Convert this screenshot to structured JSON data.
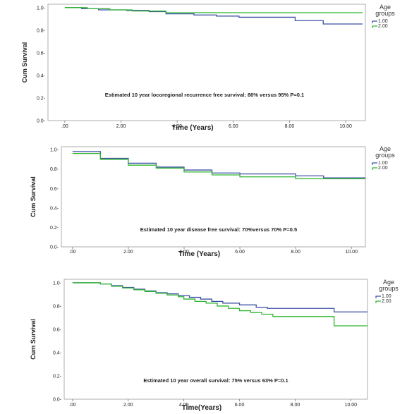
{
  "colors": {
    "group1": "#3b4fa3",
    "group2": "#2fb62f",
    "axis": "#555555"
  },
  "chart_data": [
    {
      "type": "line",
      "step": true,
      "ylabel": "Cum Survival",
      "xlabel": "Time (Years)",
      "xlim": [
        -0.6,
        10.7
      ],
      "ylim": [
        0,
        1.03
      ],
      "xticks": [
        0,
        2,
        4,
        6,
        8,
        10
      ],
      "xtick_labels": [
        ".00",
        "2.00",
        "4.00",
        "6.00",
        "8.00",
        "10.00"
      ],
      "yticks": [
        0,
        0.2,
        0.4,
        0.6,
        0.8,
        1.0
      ],
      "ytick_labels": [
        "0.0-",
        "0.2-",
        "0.4-",
        "0.6-",
        "0.8-",
        "1.0-"
      ],
      "annotation": "Estimated 10 year locoregional recurrence free survival: 86% versus 95% P=0.1",
      "legend": {
        "title_lines": [
          "Age",
          "groups"
        ],
        "position": "right"
      },
      "series": [
        {
          "name": "1.00",
          "color": "#3b4fa3",
          "x": [
            0,
            0.6,
            1.2,
            2.2,
            3.0,
            3.6,
            4.6,
            5.4,
            6.2,
            8.2,
            9.2,
            10.6
          ],
          "y": [
            1.0,
            0.99,
            0.98,
            0.975,
            0.965,
            0.945,
            0.935,
            0.925,
            0.915,
            0.885,
            0.855,
            0.855
          ]
        },
        {
          "name": "2.00",
          "color": "#2fb62f",
          "x": [
            0,
            0.8,
            1.6,
            2.4,
            3.6,
            10.6
          ],
          "y": [
            1.0,
            0.99,
            0.98,
            0.97,
            0.955,
            0.955
          ]
        }
      ]
    },
    {
      "type": "line",
      "step": true,
      "ylabel": "Cum Survival",
      "xlabel": "Time (Years)",
      "xlim": [
        -0.4,
        10.5
      ],
      "ylim": [
        0,
        1.03
      ],
      "xticks": [
        0,
        2,
        4,
        6,
        8,
        10
      ],
      "xtick_labels": [
        ".00",
        "2.00",
        "4.00",
        "6.00",
        "8.00",
        "10.00"
      ],
      "yticks": [
        0,
        0.2,
        0.4,
        0.6,
        0.8,
        1.0
      ],
      "ytick_labels": [
        "0.0-",
        "0.2-",
        "0.4-",
        "0.6-",
        "0.8-",
        "1.0-"
      ],
      "annotation": "Estimated 10 year disease free survival: 70%versus 70% P=0.5",
      "legend": {
        "title_lines": [
          "Age",
          "groups"
        ],
        "position": "right"
      },
      "series": [
        {
          "name": "1.00",
          "color": "#3b4fa3",
          "x": [
            0,
            1,
            2,
            3,
            4,
            5,
            6,
            8,
            9,
            10.5
          ],
          "y": [
            0.98,
            0.91,
            0.86,
            0.82,
            0.79,
            0.76,
            0.75,
            0.73,
            0.71,
            0.71
          ]
        },
        {
          "name": "2.00",
          "color": "#2fb62f",
          "x": [
            0,
            1,
            2,
            3,
            4,
            5,
            6,
            8,
            9,
            10.5
          ],
          "y": [
            0.96,
            0.9,
            0.84,
            0.81,
            0.77,
            0.74,
            0.72,
            0.7,
            0.7,
            0.7
          ]
        }
      ]
    },
    {
      "type": "line",
      "step": true,
      "ylabel": "Cum Survival",
      "xlabel": "Time(Years)",
      "xlim": [
        -0.3,
        10.6
      ],
      "ylim": [
        0,
        1.03
      ],
      "xticks": [
        0,
        2,
        4,
        6,
        8,
        10
      ],
      "xtick_labels": [
        ".00",
        "2.00",
        "4.00",
        "6.00",
        "8.00",
        "10.00"
      ],
      "yticks": [
        0,
        0.2,
        0.4,
        0.6,
        0.8,
        1.0
      ],
      "ytick_labels": [
        "0.0-",
        "0.2-",
        "0.4-",
        "0.6-",
        "0.8-",
        "1.0-"
      ],
      "annotation": "Estimated 10 year overall survival: 75% versus 63% P=0.1",
      "legend": {
        "title_lines": [
          "Age",
          "groups"
        ],
        "position": "right"
      },
      "series": [
        {
          "name": "1.00",
          "color": "#3b4fa3",
          "x": [
            0,
            1.0,
            1.4,
            1.8,
            2.2,
            2.6,
            3.0,
            3.4,
            3.8,
            4.2,
            4.6,
            5.0,
            5.4,
            6.0,
            6.6,
            7.0,
            9.4,
            10.6
          ],
          "y": [
            1.0,
            0.99,
            0.975,
            0.96,
            0.945,
            0.93,
            0.915,
            0.905,
            0.89,
            0.875,
            0.86,
            0.84,
            0.825,
            0.81,
            0.79,
            0.78,
            0.75,
            0.75
          ]
        },
        {
          "name": "2.00",
          "color": "#2fb62f",
          "x": [
            0,
            1.0,
            1.4,
            1.8,
            2.2,
            2.6,
            3.0,
            3.4,
            3.8,
            4.0,
            4.4,
            4.8,
            5.2,
            5.6,
            6.0,
            6.4,
            6.8,
            7.2,
            9.4,
            10.6
          ],
          "y": [
            1.0,
            0.99,
            0.97,
            0.955,
            0.94,
            0.925,
            0.91,
            0.895,
            0.88,
            0.86,
            0.84,
            0.825,
            0.8,
            0.78,
            0.76,
            0.745,
            0.73,
            0.71,
            0.63,
            0.63
          ]
        }
      ]
    }
  ]
}
